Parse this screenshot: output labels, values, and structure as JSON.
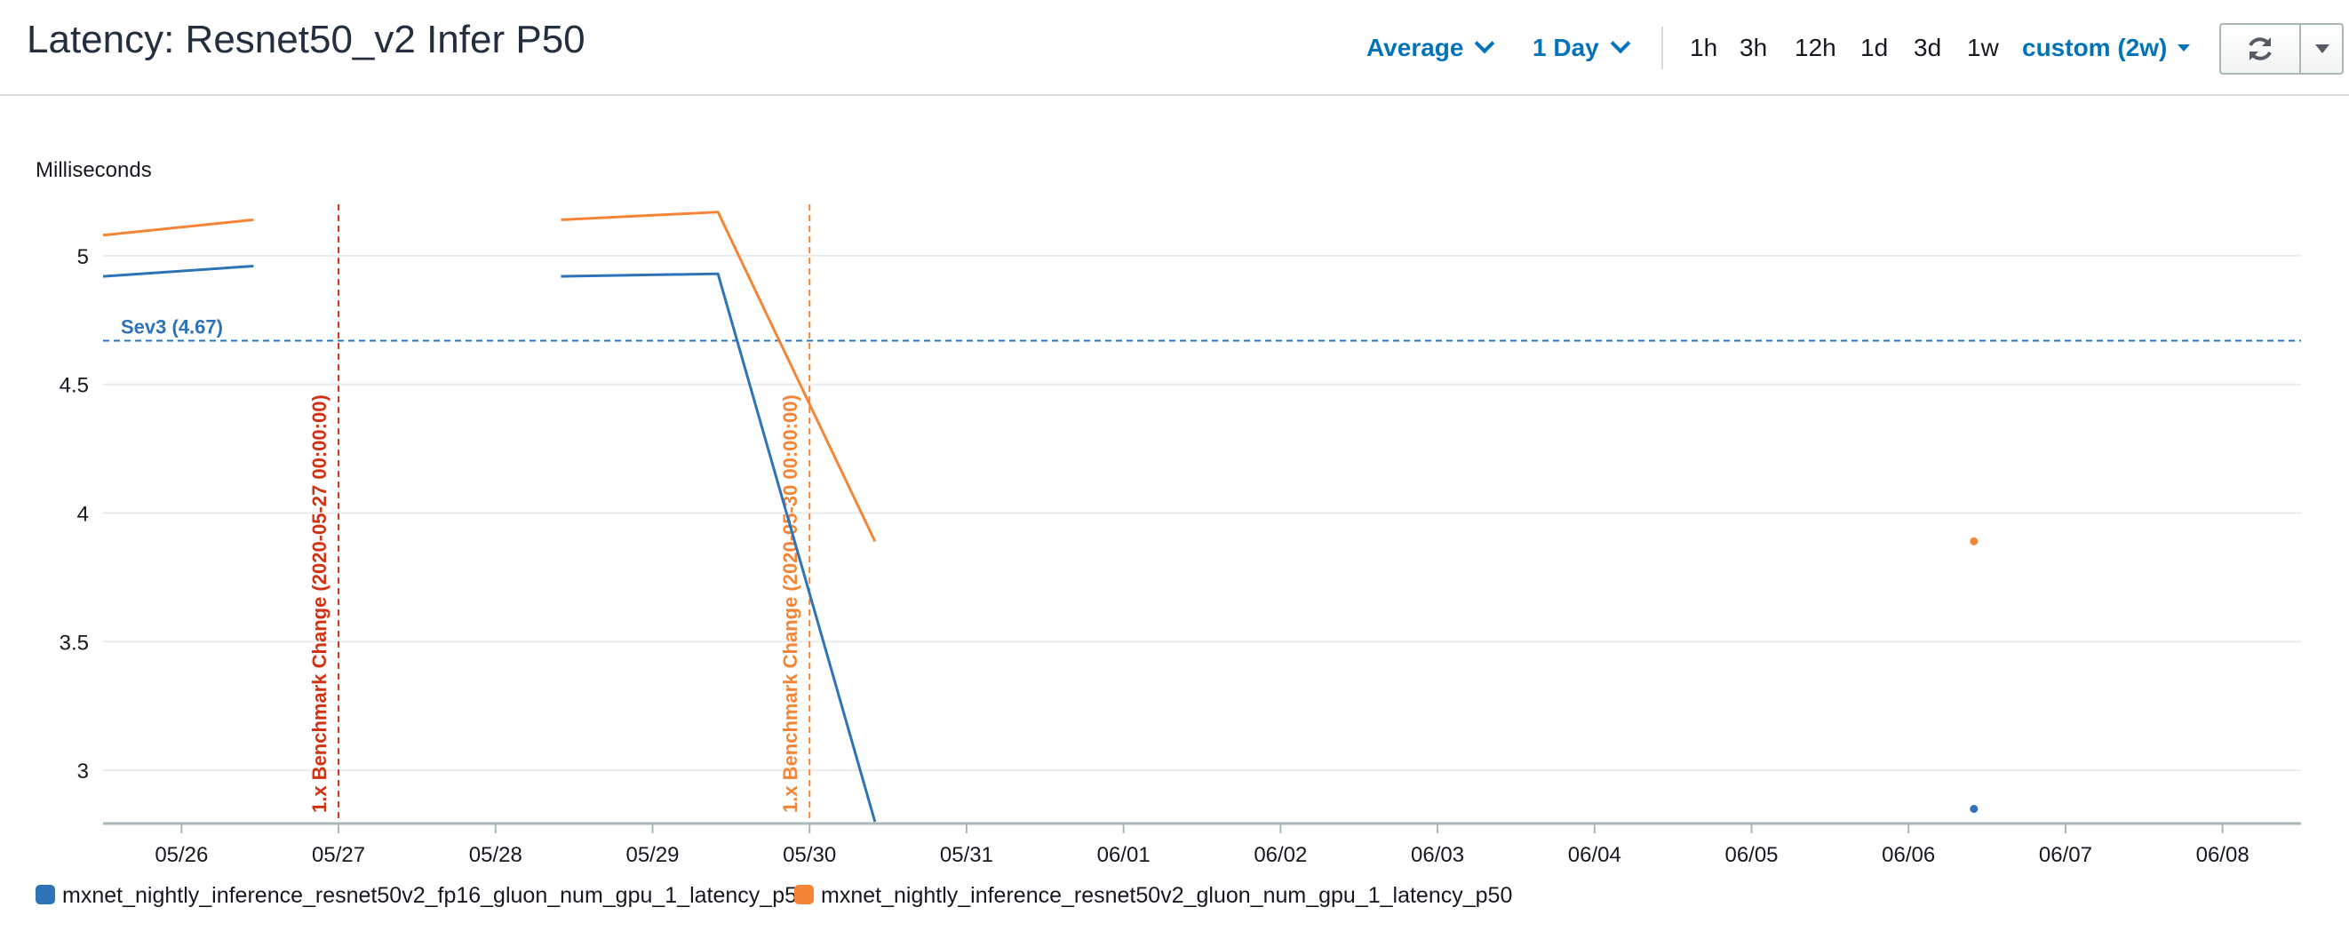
{
  "header": {
    "title": "Latency: Resnet50_v2 Infer P50",
    "statistic": "Average",
    "period": "1 Day",
    "ranges": [
      "1h",
      "3h",
      "12h",
      "1d",
      "3d",
      "1w"
    ],
    "custom_range": "custom (2w)",
    "refresh_icon": "refresh-icon",
    "dropdown_icon": "caret-down-icon"
  },
  "colors": {
    "series1": "#2e73b8",
    "series2": "#f58536",
    "annotation_1": "#d13212",
    "annotation_2": "#f58536",
    "threshold": "#2e73b8",
    "grid": "#e9ebed",
    "axis": "#aab7b8"
  },
  "chart_data": {
    "type": "line",
    "ylabel": "Milliseconds",
    "xlabel": "",
    "x_ticks": [
      "05/26",
      "05/27",
      "05/28",
      "05/29",
      "05/30",
      "05/31",
      "06/01",
      "06/02",
      "06/03",
      "06/04",
      "06/05",
      "06/06",
      "06/07",
      "06/08"
    ],
    "xlim": [
      "2020-05-25T12:00",
      "2020-06-08T12:00"
    ],
    "y_ticks": [
      3,
      3.5,
      4,
      4.5,
      5
    ],
    "ylim": [
      2.8,
      5.2
    ],
    "grid": true,
    "legend_position": "bottom",
    "series": [
      {
        "name": "mxnet_nightly_inference_resnet50v2_fp16_gluon_num_gpu_1_latency_p50",
        "segments": [
          [
            {
              "x": "2020-05-25T12:00",
              "y": 4.92
            },
            {
              "x": "2020-05-26T11:00",
              "y": 4.96
            }
          ],
          [
            {
              "x": "2020-05-28T10:00",
              "y": 4.92
            },
            {
              "x": "2020-05-29T10:00",
              "y": 4.93
            },
            {
              "x": "2020-05-30T10:00",
              "y": 2.8
            }
          ],
          [
            {
              "x": "2020-06-06T10:00",
              "y": 2.85
            }
          ]
        ]
      },
      {
        "name": "mxnet_nightly_inference_resnet50v2_gluon_num_gpu_1_latency_p50",
        "segments": [
          [
            {
              "x": "2020-05-25T12:00",
              "y": 5.08
            },
            {
              "x": "2020-05-26T11:00",
              "y": 5.14
            }
          ],
          [
            {
              "x": "2020-05-28T10:00",
              "y": 5.14
            },
            {
              "x": "2020-05-29T10:00",
              "y": 5.17
            },
            {
              "x": "2020-05-30T10:00",
              "y": 3.89
            }
          ],
          [
            {
              "x": "2020-06-06T10:00",
              "y": 3.89
            }
          ]
        ]
      }
    ],
    "horizontal_annotations": [
      {
        "label": "Sev3 (4.67)",
        "value": 4.67
      }
    ],
    "vertical_annotations": [
      {
        "label": "1.x Benchmark Change (2020-05-27 00:00:00)",
        "x": "2020-05-27T00:00"
      },
      {
        "label": "1.x Benchmark Change (2020-05-30 00:00:00)",
        "x": "2020-05-30T00:00"
      }
    ]
  }
}
